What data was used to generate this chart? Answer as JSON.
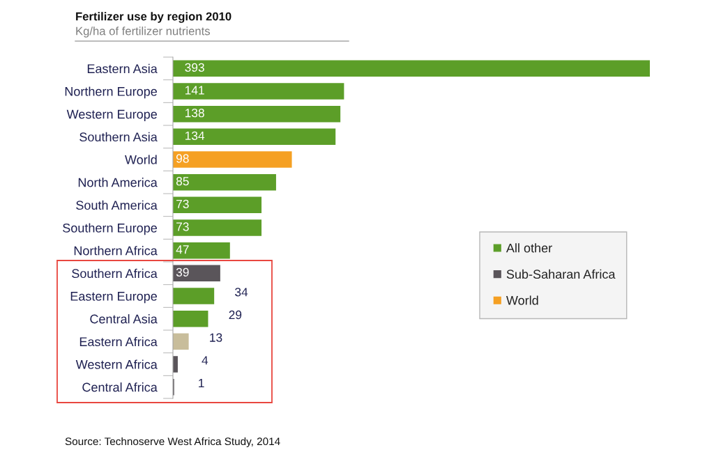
{
  "chart_data": {
    "type": "bar",
    "orientation": "horizontal",
    "title": "Fertilizer use by region 2010",
    "subtitle": "Kg/ha of fertilizer nutrients",
    "categories": [
      "Eastern Asia",
      "Northern Europe",
      "Western Europe",
      "Southern Asia",
      "World",
      "North America",
      "South America",
      "Southern Europe",
      "Northern Africa",
      "Southern Africa",
      "Eastern Europe",
      "Central Asia",
      "Eastern Africa",
      "Western Africa",
      "Central Africa"
    ],
    "series": [
      {
        "name": "All other",
        "color": "#5c9e28",
        "values": [
          393,
          141,
          138,
          134,
          null,
          85,
          73,
          73,
          47,
          null,
          34,
          29,
          null,
          null,
          null
        ]
      },
      {
        "name": "Sub-Saharan Africa",
        "color": "#5a555a",
        "values": [
          null,
          null,
          null,
          null,
          null,
          null,
          null,
          null,
          null,
          39,
          null,
          null,
          13,
          4,
          1
        ],
        "colors": [
          null,
          null,
          null,
          null,
          null,
          null,
          null,
          null,
          null,
          "#5a555a",
          null,
          null,
          "#c8bd9b",
          "#5a555a",
          "#5a555a"
        ]
      },
      {
        "name": "World",
        "color": "#f5a023",
        "values": [
          null,
          null,
          null,
          null,
          98,
          null,
          null,
          null,
          null,
          null,
          null,
          null,
          null,
          null,
          null
        ]
      }
    ],
    "data_labels": true,
    "legend": "right",
    "grid": false,
    "annotations": [
      "Source: Technoserve West Africa Study, 2014"
    ]
  }
}
